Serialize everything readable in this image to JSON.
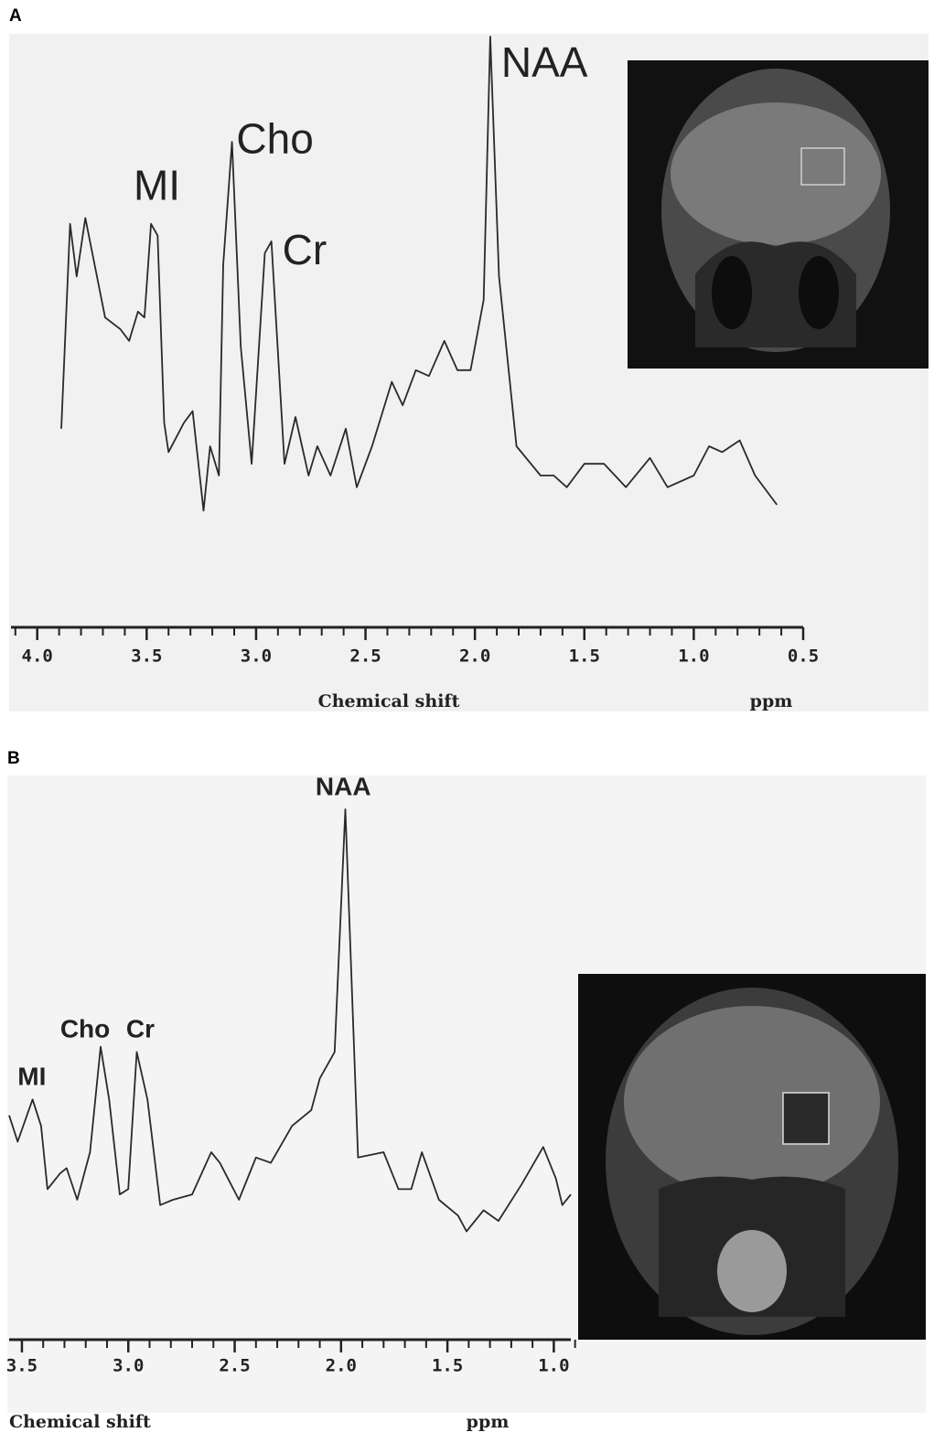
{
  "chart_data": [
    {
      "type": "line",
      "panel_label": "A",
      "xlabel": "Chemical shift",
      "xunit": "ppm",
      "color": "#2a2a2a",
      "xlim": [
        4.12,
        0.5
      ],
      "ylim": [
        0,
        100
      ],
      "xticks": [
        {
          "value": 4,
          "label": "4.0"
        },
        {
          "value": 3.5,
          "label": "3.5"
        },
        {
          "value": 3,
          "label": "3.0"
        },
        {
          "value": 2.5,
          "label": "2.5"
        },
        {
          "value": 2,
          "label": "2.0"
        },
        {
          "value": 1.5,
          "label": "1.5"
        },
        {
          "value": 1,
          "label": "1.0"
        },
        {
          "value": 0.5,
          "label": "0.5"
        }
      ],
      "xminorticks": [
        4.1,
        3.9,
        3.8,
        3.7,
        3.6,
        3.4,
        3.3,
        3.2,
        3.1,
        2.9,
        2.8,
        2.7,
        2.6,
        2.4,
        2.3,
        2.2,
        2.1,
        1.9,
        1.8,
        1.7,
        1.6,
        1.4,
        1.3,
        1.2,
        1.1,
        0.9,
        0.8,
        0.7,
        0.6
      ],
      "x": [
        3.89,
        3.85,
        3.82,
        3.78,
        3.69,
        3.62,
        3.58,
        3.54,
        3.51,
        3.48,
        3.45,
        3.42,
        3.4,
        3.33,
        3.29,
        3.24,
        3.21,
        3.17,
        3.15,
        3.11,
        3.07,
        3.02,
        2.96,
        2.93,
        2.87,
        2.82,
        2.76,
        2.72,
        2.66,
        2.59,
        2.54,
        2.47,
        2.38,
        2.33,
        2.27,
        2.21,
        2.14,
        2.08,
        2.02,
        1.96,
        1.93,
        1.89,
        1.81,
        1.7,
        1.64,
        1.58,
        1.5,
        1.41,
        1.31,
        1.2,
        1.12,
        1.0,
        0.93,
        0.87,
        0.79,
        0.72,
        0.62
      ],
      "values": [
        33,
        68,
        59,
        69,
        52,
        50,
        48,
        53,
        52,
        68,
        66,
        34,
        29,
        34,
        36,
        19,
        30,
        25,
        61,
        82,
        47,
        27,
        63,
        65,
        27,
        35,
        25,
        30,
        25,
        33,
        23,
        30,
        41,
        37,
        43,
        42,
        48,
        43,
        43,
        55,
        100,
        59,
        30,
        25,
        25,
        23,
        27,
        27,
        23,
        28,
        23,
        25,
        30,
        29,
        31,
        25,
        20
      ],
      "annotations": [
        {
          "text": "MI",
          "x": 3.56,
          "y": 74
        },
        {
          "text": "Cho",
          "x": 3.09,
          "y": 82
        },
        {
          "text": "Cr",
          "x": 2.88,
          "y": 63
        },
        {
          "text": "NAA",
          "x": 1.88,
          "y": 95
        }
      ]
    },
    {
      "type": "line",
      "panel_label": "B",
      "xlabel": "Chemical shift",
      "xunit": "ppm",
      "color": "#2a2a2a",
      "xlim": [
        3.56,
        0.92
      ],
      "ylim": [
        0,
        100
      ],
      "xticks": [
        {
          "value": 3.5,
          "label": "3.5"
        },
        {
          "value": 3,
          "label": "3.0"
        },
        {
          "value": 2.5,
          "label": "2.5"
        },
        {
          "value": 2,
          "label": "2.0"
        },
        {
          "value": 1.5,
          "label": "1.5"
        },
        {
          "value": 1,
          "label": "1.0"
        }
      ],
      "xminorticks": [
        3.4,
        3.3,
        3.2,
        3.1,
        2.9,
        2.8,
        2.7,
        2.6,
        2.4,
        2.3,
        2.2,
        2.1,
        1.9,
        1.8,
        1.7,
        1.6,
        1.4,
        1.3,
        1.2,
        1.1,
        0.9
      ],
      "x": [
        3.56,
        3.52,
        3.45,
        3.41,
        3.38,
        3.32,
        3.29,
        3.24,
        3.18,
        3.13,
        3.09,
        3.04,
        3.0,
        2.96,
        2.91,
        2.85,
        2.79,
        2.7,
        2.61,
        2.57,
        2.48,
        2.4,
        2.33,
        2.23,
        2.14,
        2.1,
        2.03,
        1.98,
        1.92,
        1.8,
        1.73,
        1.67,
        1.62,
        1.54,
        1.45,
        1.41,
        1.33,
        1.26,
        1.15,
        1.05,
        0.99,
        0.96,
        0.92
      ],
      "values": [
        42,
        37,
        45,
        40,
        28,
        31,
        32,
        26,
        35,
        55,
        45,
        27,
        28,
        54,
        45,
        25,
        26,
        27,
        35,
        33,
        26,
        34,
        33,
        40,
        43,
        49,
        54,
        100,
        34,
        35,
        28,
        28,
        35,
        26,
        23,
        20,
        24,
        22,
        29,
        36,
        30,
        25,
        27
      ],
      "annotations": [
        {
          "text": "MI",
          "x": 3.52,
          "y": 49
        },
        {
          "text": "Cho",
          "x": 3.32,
          "y": 58
        },
        {
          "text": "Cr",
          "x": 3.01,
          "y": 58
        },
        {
          "text": "NAA",
          "x": 2.12,
          "y": 104
        }
      ]
    }
  ]
}
